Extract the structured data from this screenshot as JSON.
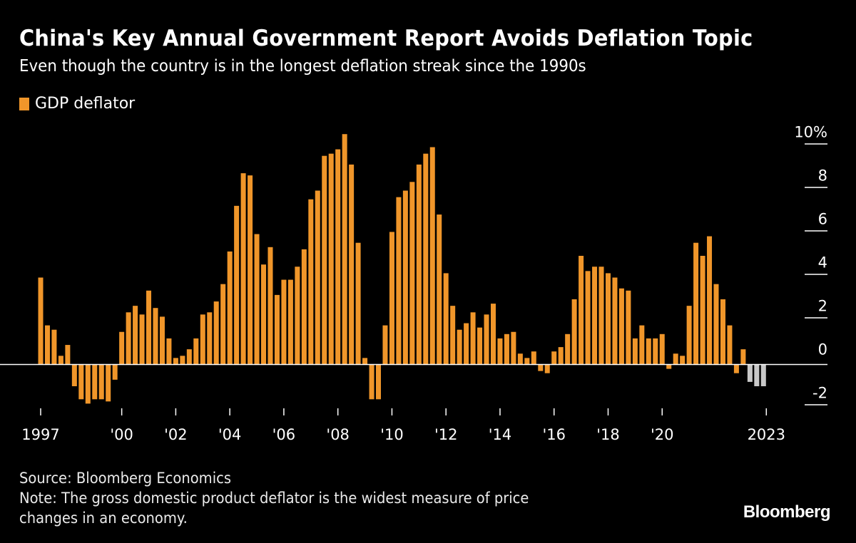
{
  "title": "China's Key Annual Government Report Avoids Deflation Topic",
  "subtitle": "Even though the country is in the longest deflation streak since the 1990s",
  "legend": [
    {
      "label": "GDP deflator",
      "color": "#f0962a"
    }
  ],
  "footer": {
    "source": "Source: Bloomberg Economics",
    "note_line1": "Note: The gross domestic product deflator is the widest measure of price",
    "note_line2": "changes in an economy."
  },
  "logo": "Bloomberg",
  "chart_data": {
    "type": "bar",
    "series": [
      {
        "name": "GDP deflator",
        "color": "#f0962a",
        "highlight_color": "#c8c8c8"
      }
    ],
    "x_start": "1997Q1",
    "x_frequency": "quarterly",
    "values": [
      4.0,
      1.8,
      1.6,
      0.4,
      0.9,
      -1.0,
      -1.6,
      -1.8,
      -1.6,
      -1.6,
      -1.7,
      -0.7,
      1.5,
      2.4,
      2.7,
      2.3,
      3.4,
      2.6,
      2.2,
      1.2,
      0.3,
      0.4,
      0.7,
      1.2,
      2.3,
      2.4,
      2.9,
      3.7,
      5.2,
      7.3,
      8.8,
      8.7,
      6.0,
      4.6,
      5.4,
      3.2,
      3.9,
      3.9,
      4.5,
      5.3,
      7.6,
      8.0,
      9.6,
      9.7,
      9.9,
      10.6,
      9.2,
      5.6,
      0.3,
      -1.6,
      -1.6,
      1.8,
      6.1,
      7.7,
      8.0,
      8.4,
      9.2,
      9.7,
      10.0,
      6.9,
      4.2,
      2.7,
      1.6,
      1.9,
      2.4,
      1.7,
      2.3,
      2.8,
      1.2,
      1.4,
      1.5,
      0.5,
      0.3,
      0.6,
      -0.3,
      -0.4,
      0.6,
      0.8,
      1.4,
      3.0,
      5.0,
      4.3,
      4.5,
      4.5,
      4.2,
      4.0,
      3.5,
      3.4,
      1.2,
      1.8,
      1.2,
      1.2,
      1.4,
      -0.2,
      0.5,
      0.4,
      2.7,
      5.6,
      5.0,
      5.9,
      3.7,
      3.0,
      1.8,
      -0.4,
      0.7,
      -0.8,
      -1.0,
      -1.0
    ],
    "highlighted_last_n": 3,
    "x_ticks": [
      {
        "label": "1997",
        "at": "1997Q1"
      },
      {
        "label": "'00",
        "at": "2000Q1"
      },
      {
        "label": "'02",
        "at": "2002Q1"
      },
      {
        "label": "'04",
        "at": "2004Q1"
      },
      {
        "label": "'06",
        "at": "2006Q1"
      },
      {
        "label": "'08",
        "at": "2008Q1"
      },
      {
        "label": "'10",
        "at": "2010Q1"
      },
      {
        "label": "'12",
        "at": "2012Q1"
      },
      {
        "label": "'14",
        "at": "2014Q1"
      },
      {
        "label": "'16",
        "at": "2016Q1"
      },
      {
        "label": "'18",
        "at": "2018Q1"
      },
      {
        "label": "'20",
        "at": "2020Q1"
      },
      {
        "label": "2023",
        "at": "2023Q4"
      }
    ],
    "y_ticks": [
      {
        "value": 10,
        "label": "10%"
      },
      {
        "value": 8,
        "label": "8"
      },
      {
        "value": 6,
        "label": "6"
      },
      {
        "value": 4,
        "label": "4"
      },
      {
        "value": 2,
        "label": "2"
      },
      {
        "value": 0,
        "label": "0"
      },
      {
        "value": -2,
        "label": "-2"
      }
    ],
    "ylim": [
      -2,
      10
    ],
    "y_axis_side": "right",
    "grid": false,
    "legend_position": "top-left"
  }
}
